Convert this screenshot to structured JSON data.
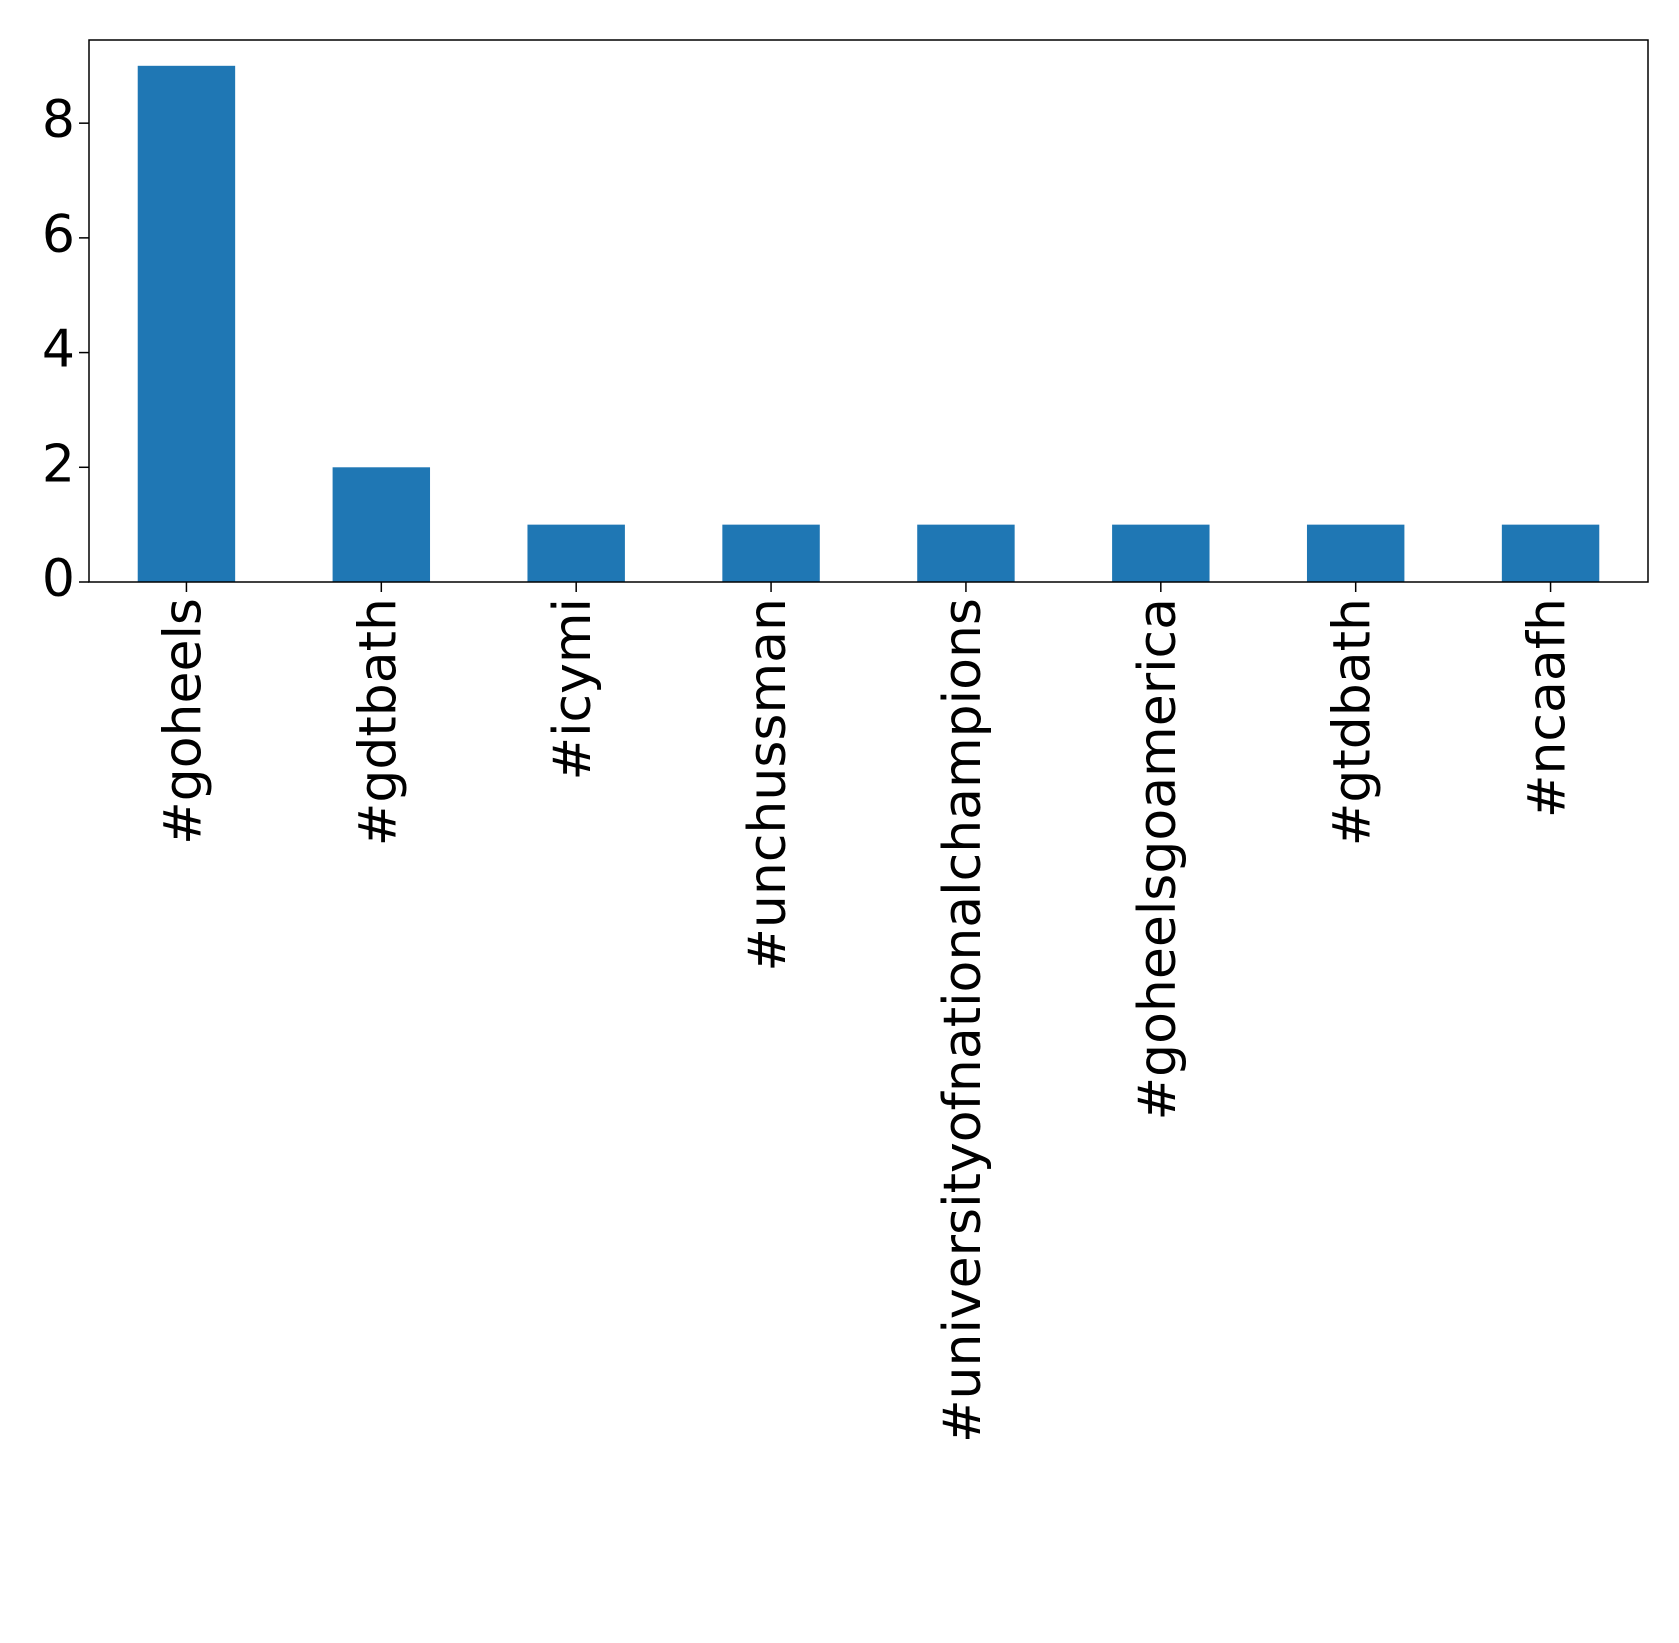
{
  "chart_data": {
    "type": "bar",
    "categories": [
      "#goheels",
      "#gdtbath",
      "#icymi",
      "#unchussman",
      "#universityofnationalchampions",
      "#goheelsgoamerica",
      "#gtdbath",
      "#ncaafh"
    ],
    "values": [
      9,
      2,
      1,
      1,
      1,
      1,
      1,
      1
    ],
    "color": "#1f77b4",
    "ylim": [
      0,
      9.45
    ],
    "yticks": [
      0,
      2,
      4,
      6,
      8
    ],
    "grid": false
  }
}
